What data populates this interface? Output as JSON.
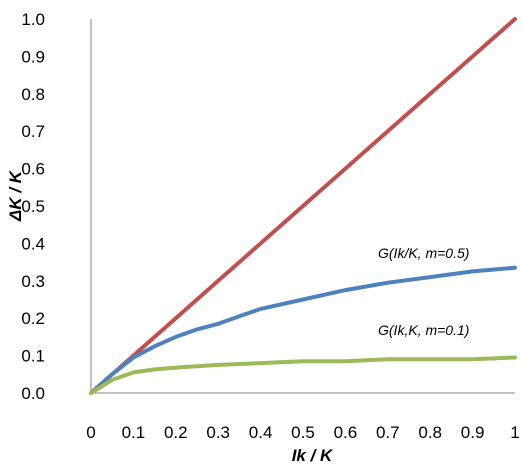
{
  "chart_data": {
    "type": "line",
    "title": "",
    "xlabel": "Ik / K",
    "ylabel": "ΔK / K",
    "xlim": [
      0,
      1
    ],
    "ylim": [
      0,
      1
    ],
    "x_ticks": [
      "0",
      "0.1",
      "0.2",
      "0.3",
      "0.4",
      "0.5",
      "0.6",
      "0.7",
      "0.8",
      "0.9",
      "1"
    ],
    "y_ticks": [
      "0.0",
      "0.1",
      "0.2",
      "0.3",
      "0.4",
      "0.5",
      "0.6",
      "0.7",
      "0.8",
      "0.9",
      "1.0"
    ],
    "grid": false,
    "legend": "none",
    "series": [
      {
        "color": "#C0504D",
        "x": [
          0,
          0.1,
          0.2,
          0.3,
          0.4,
          0.5,
          0.6,
          0.7,
          0.8,
          0.9,
          1.0
        ],
        "y": [
          0,
          0.1,
          0.2,
          0.3,
          0.4,
          0.5,
          0.6,
          0.7,
          0.8,
          0.9,
          1.0
        ]
      },
      {
        "name": "G(Ik/K, m=0.5)",
        "color": "#4F81BD",
        "x": [
          0,
          0.05,
          0.1,
          0.15,
          0.2,
          0.25,
          0.3,
          0.35,
          0.4,
          0.5,
          0.6,
          0.7,
          0.8,
          0.9,
          1.0
        ],
        "y": [
          0,
          0.05,
          0.095,
          0.125,
          0.15,
          0.17,
          0.185,
          0.205,
          0.225,
          0.25,
          0.275,
          0.295,
          0.31,
          0.325,
          0.335
        ]
      },
      {
        "name": "G(Ik,K, m=0.1)",
        "color": "#9BBB59",
        "x": [
          0,
          0.05,
          0.1,
          0.15,
          0.2,
          0.3,
          0.4,
          0.5,
          0.6,
          0.7,
          0.8,
          0.9,
          1.0
        ],
        "y": [
          0,
          0.035,
          0.055,
          0.063,
          0.068,
          0.075,
          0.08,
          0.085,
          0.085,
          0.09,
          0.09,
          0.09,
          0.095
        ]
      }
    ],
    "annotations": [
      {
        "text": "G(Ik/K, m=0.5)",
        "series": 1
      },
      {
        "text": "G(Ik,K, m=0.1)",
        "series": 2
      }
    ]
  }
}
